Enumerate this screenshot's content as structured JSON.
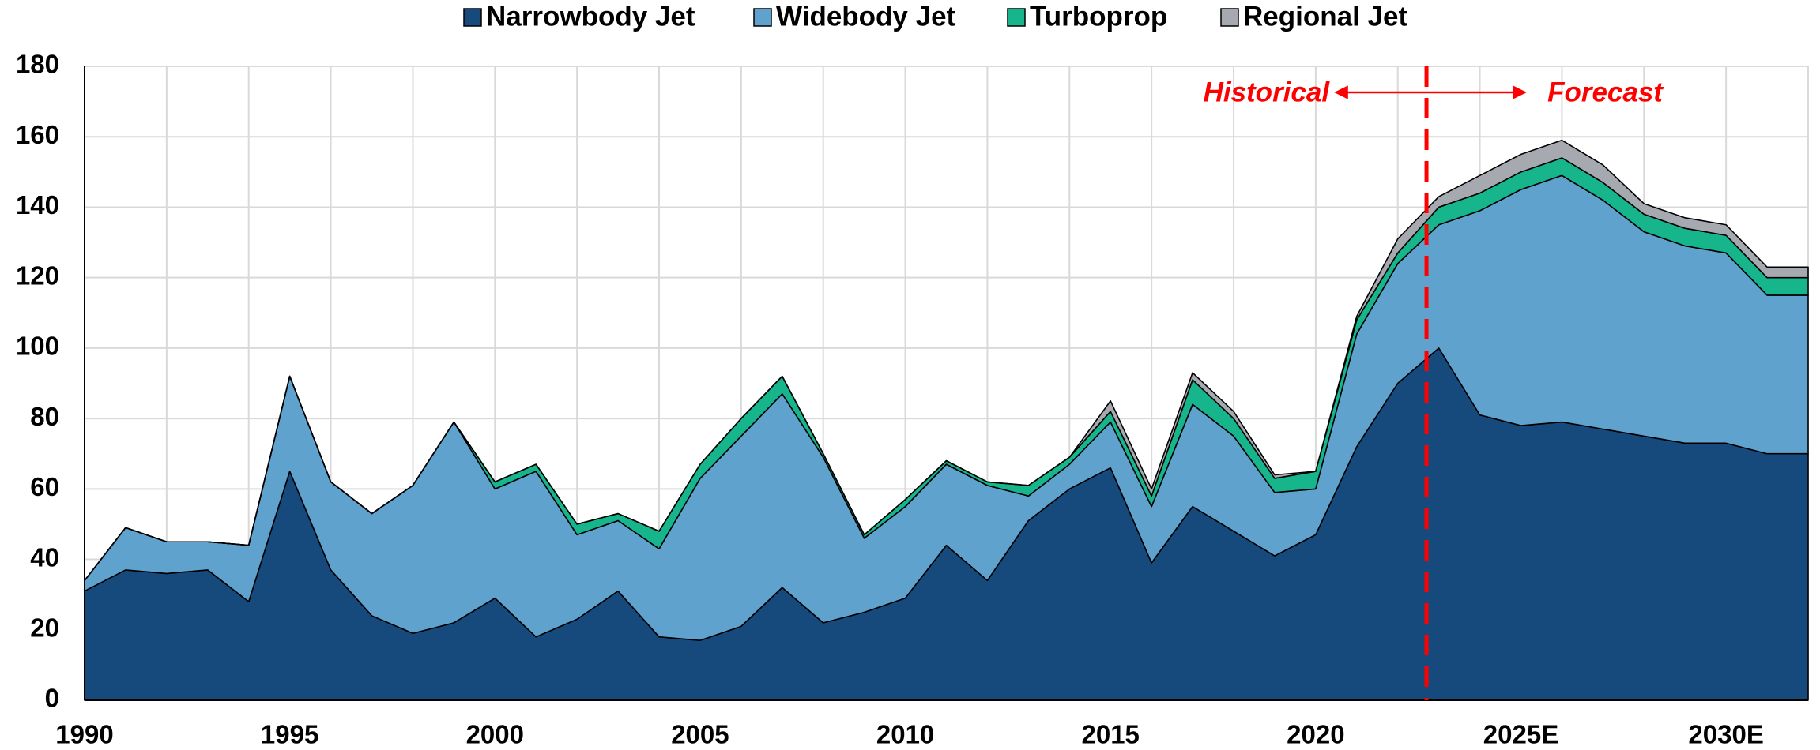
{
  "chart_data": {
    "type": "area",
    "stacked": true,
    "categories": [
      "1990",
      null,
      null,
      null,
      null,
      "1995",
      null,
      null,
      null,
      null,
      "2000",
      null,
      null,
      null,
      null,
      "2005",
      null,
      null,
      null,
      null,
      "2010",
      null,
      null,
      null,
      null,
      "2015",
      null,
      null,
      null,
      null,
      "2020",
      null,
      null,
      null,
      null,
      "2025E",
      null,
      null,
      null,
      null,
      "2030E",
      null,
      null
    ],
    "series": [
      {
        "name": "Narrowbody Jet",
        "color": "#174a7c",
        "values": [
          31,
          37,
          36,
          37,
          28,
          65,
          37,
          24,
          19,
          22,
          29,
          18,
          23,
          31,
          18,
          17,
          21,
          32,
          22,
          25,
          29,
          44,
          34,
          51,
          60,
          66,
          39,
          55,
          48,
          41,
          47,
          72,
          90,
          100,
          81,
          78,
          79,
          77,
          75,
          73,
          73,
          70,
          70
        ]
      },
      {
        "name": "Widebody Jet",
        "color": "#5fa2ce",
        "values": [
          3,
          12,
          9,
          8,
          16,
          27,
          25,
          29,
          42,
          57,
          31,
          47,
          24,
          20,
          25,
          46,
          54,
          55,
          47,
          21,
          26,
          23,
          27,
          7,
          7,
          13,
          16,
          29,
          27,
          18,
          13,
          32,
          34,
          35,
          58,
          67,
          70,
          65,
          58,
          56,
          54,
          45,
          45
        ]
      },
      {
        "name": "Turboprop",
        "color": "#16b58b",
        "values": [
          0,
          0,
          0,
          0,
          0,
          0,
          0,
          0,
          0,
          0,
          2,
          2,
          3,
          2,
          5,
          4,
          5,
          5,
          1,
          1,
          2,
          1,
          1,
          3,
          2,
          3,
          3,
          7,
          5,
          4,
          5,
          4,
          3,
          5,
          5,
          5,
          5,
          5,
          5,
          5,
          5,
          5,
          5
        ]
      },
      {
        "name": "Regional Jet",
        "color": "#a7a9b0",
        "values": [
          0,
          0,
          0,
          0,
          0,
          0,
          0,
          0,
          0,
          0,
          0,
          0,
          0,
          0,
          0,
          0,
          0,
          0,
          0,
          0,
          0,
          0,
          0,
          0,
          0,
          3,
          2,
          2,
          2,
          1,
          0,
          1,
          4,
          3,
          5,
          5,
          5,
          5,
          3,
          3,
          3,
          3,
          3
        ]
      }
    ],
    "annotations": [
      "Historical",
      "Forecast"
    ],
    "ylim": [
      0,
      180
    ],
    "yticks": [
      0,
      20,
      40,
      60,
      80,
      100,
      120,
      140,
      160,
      180
    ],
    "grid": true,
    "legend": "top"
  }
}
